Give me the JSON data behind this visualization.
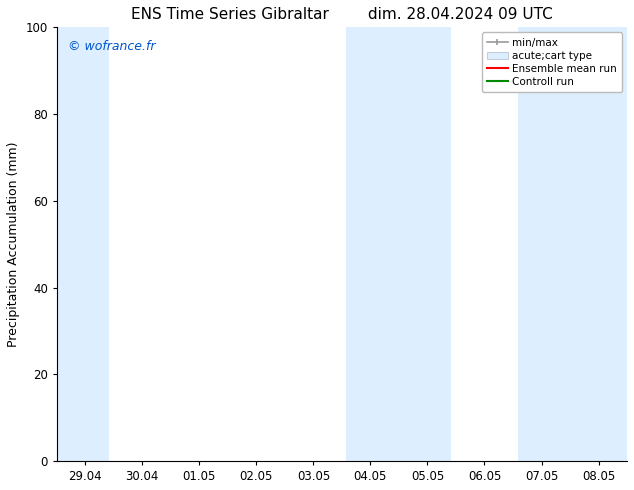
{
  "title_left": "ENS Time Series Gibraltar",
  "title_right": "dim. 28.04.2024 09 UTC",
  "ylabel": "Precipitation Accumulation (mm)",
  "xlim_dates": [
    "29.04",
    "30.04",
    "01.05",
    "02.05",
    "03.05",
    "04.05",
    "05.05",
    "06.05",
    "07.05",
    "08.05"
  ],
  "ylim": [
    0,
    100
  ],
  "yticks": [
    0,
    20,
    40,
    60,
    80,
    100
  ],
  "watermark": "© wofrance.fr",
  "watermark_color": "#0055cc",
  "bg_color": "#ffffff",
  "plot_bg_color": "#ffffff",
  "shaded_band_color": "#ddeeff",
  "shaded_columns": [
    {
      "xmin": -0.5,
      "xmax": 0.42
    },
    {
      "xmin": 4.58,
      "xmax": 6.42
    },
    {
      "xmin": 7.58,
      "xmax": 9.5
    }
  ],
  "legend_items": [
    {
      "label": "min/max",
      "color": "#aaaaaa"
    },
    {
      "label": "acute;cart type",
      "color": "#cce0f0"
    },
    {
      "label": "Ensemble mean run",
      "color": "#ff0000"
    },
    {
      "label": "Controll run",
      "color": "#008800"
    }
  ],
  "title_fontsize": 11,
  "label_fontsize": 9,
  "tick_fontsize": 8.5,
  "legend_fontsize": 7.5
}
